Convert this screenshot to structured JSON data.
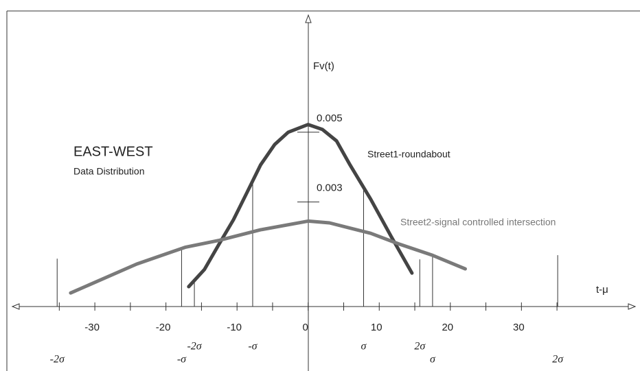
{
  "chart_data": {
    "type": "line",
    "title": "EAST-WEST",
    "subtitle": "Data Distribution",
    "y_label": "Fv(t)",
    "x_label": "t-μ",
    "xlim": [
      -41.6,
      46
    ],
    "ylim": [
      0,
      0.0083
    ],
    "xticks": [
      -30,
      -20,
      -10,
      0,
      10,
      20,
      30
    ],
    "minor_xticks": [
      -35,
      -25,
      -15,
      -5,
      5,
      15,
      25,
      35
    ],
    "yticks": [
      0.003,
      0.005
    ],
    "series": [
      {
        "name": "Street1-roundabout",
        "color": "#444444",
        "x": [
          -16.8,
          -14.6,
          -12.5,
          -10.5,
          -8.6,
          -6.7,
          -4.7,
          -2.8,
          0,
          2,
          4,
          5.9,
          8.8,
          11.7,
          14.6
        ],
        "values": [
          0.00057,
          0.00106,
          0.0018,
          0.00249,
          0.00327,
          0.00406,
          0.00465,
          0.005,
          0.00522,
          0.00508,
          0.00475,
          0.00406,
          0.00308,
          0.002,
          0.00096
        ],
        "sigma_marks": [
          {
            "value": -16,
            "label": "-2σ"
          },
          {
            "value": -7.8,
            "label": "-σ"
          },
          {
            "value": 7.8,
            "label": "σ"
          },
          {
            "value": 15.7,
            "label": "2σ"
          }
        ]
      },
      {
        "name": "Street2-signal controlled intersection",
        "color": "#7a7a7a",
        "x": [
          -33.4,
          -24.1,
          -17.3,
          -12.5,
          -6.7,
          0,
          3,
          8.8,
          12.7,
          17.5,
          22.1
        ],
        "values": [
          0.00039,
          0.00122,
          0.0017,
          0.0019,
          0.0022,
          0.00245,
          0.0024,
          0.0021,
          0.0018,
          0.00147,
          0.00108
        ],
        "sigma_marks": [
          {
            "value": -35.3,
            "label": "-2σ"
          },
          {
            "value": -17.8,
            "label": "-σ"
          },
          {
            "value": 17.5,
            "label": "σ"
          },
          {
            "value": 35.1,
            "label": "2σ"
          }
        ]
      }
    ]
  }
}
